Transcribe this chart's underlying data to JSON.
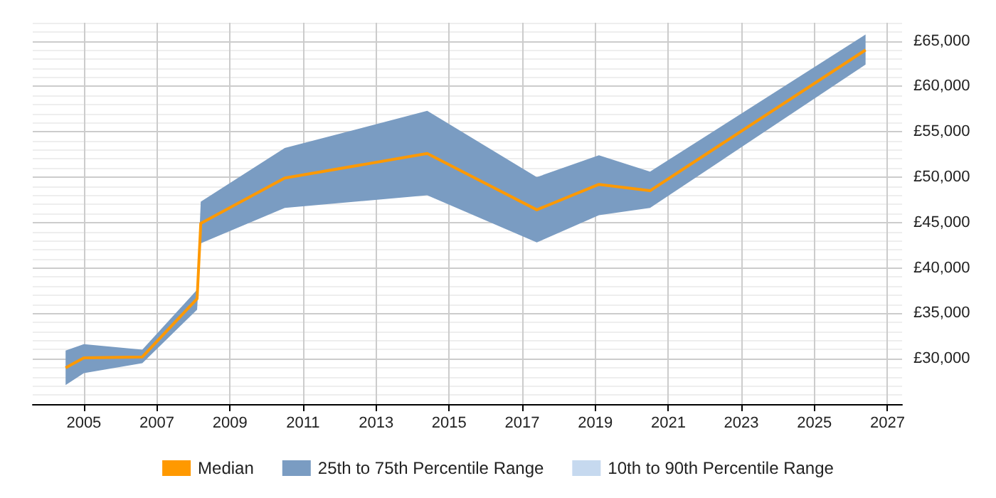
{
  "chart_data": {
    "type": "line",
    "x": [
      2004.5,
      2005.0,
      2006.6,
      2008.1,
      2008.2,
      2010.5,
      2014.4,
      2017.4,
      2019.1,
      2020.5,
      2026.4
    ],
    "series": [
      {
        "name": "Median",
        "color": "#ff9900",
        "values": [
          29000,
          30100,
          30200,
          36600,
          44900,
          49900,
          52600,
          46400,
          49200,
          48500,
          64000
        ]
      },
      {
        "name": "25th to 75th Percentile Range",
        "type": "area",
        "color": "#7a9cc2",
        "values": [
          null,
          null,
          null,
          null,
          null,
          null,
          null,
          null,
          null,
          null,
          null
        ],
        "lower": [
          27100,
          28400,
          29500,
          35400,
          42700,
          46600,
          48000,
          42800,
          45800,
          46600,
          62400
        ],
        "upper": [
          30900,
          31600,
          31000,
          37600,
          47300,
          53200,
          57300,
          50000,
          52400,
          50600,
          65700
        ]
      },
      {
        "name": "10th to 90th Percentile Range",
        "type": "area",
        "color": "#c6d9ef",
        "values": [
          null,
          null,
          null,
          null,
          null,
          null,
          null,
          null,
          null,
          null,
          null
        ]
      }
    ],
    "xlim": [
      2003.6,
      2027.4
    ],
    "xticks": [
      2005,
      2007,
      2009,
      2011,
      2013,
      2015,
      2017,
      2019,
      2021,
      2023,
      2025,
      2027
    ],
    "ylim": [
      25000,
      67000
    ],
    "yticks": [
      {
        "value": 26000,
        "label": null
      },
      {
        "value": 27000,
        "label": null
      },
      {
        "value": 28000,
        "label": null
      },
      {
        "value": 29000,
        "label": null
      },
      {
        "value": 30000,
        "label": "£30,000"
      },
      {
        "value": 31000,
        "label": null
      },
      {
        "value": 32000,
        "label": null
      },
      {
        "value": 33000,
        "label": null
      },
      {
        "value": 34000,
        "label": null
      },
      {
        "value": 35000,
        "label": "£35,000"
      },
      {
        "value": 36000,
        "label": null
      },
      {
        "value": 37000,
        "label": null
      },
      {
        "value": 38000,
        "label": null
      },
      {
        "value": 39000,
        "label": null
      },
      {
        "value": 40000,
        "label": "£40,000"
      },
      {
        "value": 41000,
        "label": null
      },
      {
        "value": 42000,
        "label": null
      },
      {
        "value": 43000,
        "label": null
      },
      {
        "value": 44000,
        "label": null
      },
      {
        "value": 45000,
        "label": "£45,000"
      },
      {
        "value": 46000,
        "label": null
      },
      {
        "value": 47000,
        "label": null
      },
      {
        "value": 48000,
        "label": null
      },
      {
        "value": 49000,
        "label": null
      },
      {
        "value": 50000,
        "label": "£50,000"
      },
      {
        "value": 51000,
        "label": null
      },
      {
        "value": 52000,
        "label": null
      },
      {
        "value": 53000,
        "label": null
      },
      {
        "value": 54000,
        "label": null
      },
      {
        "value": 55000,
        "label": "£55,000"
      },
      {
        "value": 56000,
        "label": null
      },
      {
        "value": 57000,
        "label": null
      },
      {
        "value": 58000,
        "label": null
      },
      {
        "value": 59000,
        "label": null
      },
      {
        "value": 60000,
        "label": "£60,000"
      },
      {
        "value": 61000,
        "label": null
      },
      {
        "value": 62000,
        "label": null
      },
      {
        "value": 63000,
        "label": null
      },
      {
        "value": 64000,
        "label": null
      },
      {
        "value": 65000,
        "label": "£65,000"
      },
      {
        "value": 66000,
        "label": null
      },
      {
        "value": 67000,
        "label": null
      }
    ],
    "grid": true,
    "legend": "bottom",
    "marker": "none",
    "line_style": "solid"
  }
}
